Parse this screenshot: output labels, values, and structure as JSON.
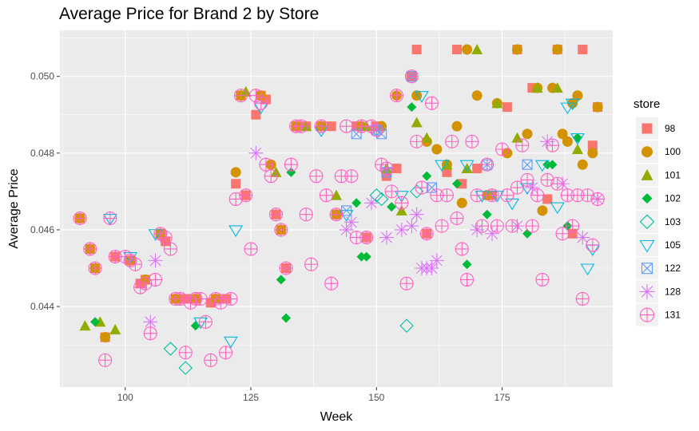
{
  "chart_data": {
    "type": "scatter",
    "title": "Average Price for Brand 2 by Store",
    "xlabel": "Week",
    "ylabel": "Average Price",
    "xlim": [
      87,
      197
    ],
    "ylim": [
      0.0419,
      0.0512
    ],
    "x_ticks": [
      100,
      125,
      150,
      175
    ],
    "y_ticks": [
      0.044,
      0.046,
      0.048,
      0.05
    ],
    "x_tick_labels": [
      "100",
      "125",
      "150",
      "175"
    ],
    "y_tick_labels": [
      "0.044",
      "0.046",
      "0.048",
      "0.050"
    ],
    "grid": true,
    "legend_title": "store",
    "legend_position": "right",
    "series": [
      {
        "name": "98",
        "shape": "square",
        "color": "#F8766D",
        "points": [
          [
            91,
            0.0463
          ],
          [
            93,
            0.0455
          ],
          [
            94,
            0.045
          ],
          [
            96,
            0.0432
          ],
          [
            98,
            0.0453
          ],
          [
            101,
            0.0452
          ],
          [
            103,
            0.0446
          ],
          [
            104,
            0.0447
          ],
          [
            107,
            0.0459
          ],
          [
            108,
            0.0457
          ],
          [
            110,
            0.0442
          ],
          [
            112,
            0.0442
          ],
          [
            114,
            0.0442
          ],
          [
            117,
            0.0441
          ],
          [
            118,
            0.0442
          ],
          [
            120,
            0.0442
          ],
          [
            122,
            0.0472
          ],
          [
            123,
            0.0495
          ],
          [
            124,
            0.0469
          ],
          [
            126,
            0.049
          ],
          [
            127,
            0.0495
          ],
          [
            128,
            0.0494
          ],
          [
            130,
            0.0464
          ],
          [
            131,
            0.046
          ],
          [
            132,
            0.045
          ],
          [
            134,
            0.0487
          ],
          [
            136,
            0.0487
          ],
          [
            139,
            0.0487
          ],
          [
            141,
            0.0487
          ],
          [
            142,
            0.0464
          ],
          [
            146,
            0.0487
          ],
          [
            148,
            0.0458
          ],
          [
            150,
            0.0487
          ],
          [
            152,
            0.0474
          ],
          [
            154,
            0.0476
          ],
          [
            157,
            0.05
          ],
          [
            158,
            0.0507
          ],
          [
            160,
            0.0459
          ],
          [
            164,
            0.0475
          ],
          [
            166,
            0.0507
          ],
          [
            167,
            0.0472
          ],
          [
            170,
            0.0476
          ],
          [
            173,
            0.0469
          ],
          [
            176,
            0.0492
          ],
          [
            178,
            0.0507
          ],
          [
            181,
            0.0497
          ],
          [
            184,
            0.0468
          ],
          [
            186,
            0.0507
          ],
          [
            189,
            0.0459
          ],
          [
            191,
            0.0507
          ],
          [
            193,
            0.0482
          ],
          [
            194,
            0.0492
          ]
        ]
      },
      {
        "name": "100",
        "shape": "circle",
        "color": "#D39200",
        "points": [
          [
            91,
            0.0463
          ],
          [
            93,
            0.0455
          ],
          [
            94,
            0.045
          ],
          [
            96,
            0.0432
          ],
          [
            101,
            0.0452
          ],
          [
            104,
            0.0447
          ],
          [
            107,
            0.0459
          ],
          [
            110,
            0.0442
          ],
          [
            114,
            0.0442
          ],
          [
            118,
            0.0442
          ],
          [
            122,
            0.0475
          ],
          [
            123,
            0.0495
          ],
          [
            127,
            0.0495
          ],
          [
            129,
            0.0477
          ],
          [
            131,
            0.046
          ],
          [
            134,
            0.0487
          ],
          [
            139,
            0.0487
          ],
          [
            142,
            0.0464
          ],
          [
            147,
            0.0487
          ],
          [
            151,
            0.0487
          ],
          [
            154,
            0.0495
          ],
          [
            158,
            0.0495
          ],
          [
            160,
            0.0483
          ],
          [
            162,
            0.0481
          ],
          [
            164,
            0.0477
          ],
          [
            166,
            0.0487
          ],
          [
            167,
            0.0467
          ],
          [
            168,
            0.0507
          ],
          [
            170,
            0.0495
          ],
          [
            172,
            0.0469
          ],
          [
            174,
            0.0493
          ],
          [
            176,
            0.048
          ],
          [
            178,
            0.0507
          ],
          [
            180,
            0.0485
          ],
          [
            182,
            0.0497
          ],
          [
            183,
            0.0465
          ],
          [
            185,
            0.0497
          ],
          [
            186,
            0.0507
          ],
          [
            187,
            0.0485
          ],
          [
            188,
            0.0483
          ],
          [
            189,
            0.0493
          ],
          [
            190,
            0.0495
          ],
          [
            191,
            0.0477
          ],
          [
            193,
            0.048
          ],
          [
            194,
            0.0492
          ]
        ]
      },
      {
        "name": "101",
        "shape": "triangle",
        "color": "#93AA00",
        "points": [
          [
            92,
            0.0435
          ],
          [
            95,
            0.0436
          ],
          [
            98,
            0.0434
          ],
          [
            124,
            0.0496
          ],
          [
            130,
            0.0475
          ],
          [
            136,
            0.0487
          ],
          [
            142,
            0.0469
          ],
          [
            148,
            0.0487
          ],
          [
            152,
            0.0476
          ],
          [
            155,
            0.0465
          ],
          [
            158,
            0.0488
          ],
          [
            160,
            0.0484
          ],
          [
            164,
            0.0477
          ],
          [
            168,
            0.0476
          ],
          [
            170,
            0.0507
          ],
          [
            174,
            0.0493
          ],
          [
            178,
            0.0484
          ],
          [
            182,
            0.0497
          ],
          [
            186,
            0.0497
          ],
          [
            190,
            0.0481
          ]
        ]
      },
      {
        "name": "102",
        "shape": "diamond",
        "color": "#00BA38",
        "points": [
          [
            94,
            0.0436
          ],
          [
            114,
            0.0435
          ],
          [
            131,
            0.0447
          ],
          [
            132,
            0.0437
          ],
          [
            133,
            0.0475
          ],
          [
            146,
            0.0467
          ],
          [
            147,
            0.0453
          ],
          [
            148,
            0.0453
          ],
          [
            153,
            0.0466
          ],
          [
            157,
            0.0492
          ],
          [
            160,
            0.0474
          ],
          [
            166,
            0.0472
          ],
          [
            168,
            0.0451
          ],
          [
            172,
            0.0464
          ],
          [
            180,
            0.0459
          ],
          [
            184,
            0.0477
          ],
          [
            185,
            0.0477
          ],
          [
            188,
            0.0461
          ],
          [
            190,
            0.0484
          ]
        ]
      },
      {
        "name": "103",
        "shape": "diamond-open",
        "color": "#00C19F",
        "points": [
          [
            109,
            0.0429
          ],
          [
            112,
            0.0424
          ],
          [
            150,
            0.0469
          ],
          [
            151,
            0.0468
          ],
          [
            156,
            0.0435
          ],
          [
            158,
            0.047
          ]
        ]
      },
      {
        "name": "105",
        "shape": "triangle-down-open",
        "color": "#00B9E3",
        "points": [
          [
            97,
            0.0463
          ],
          [
            101,
            0.0453
          ],
          [
            106,
            0.0459
          ],
          [
            115,
            0.0436
          ],
          [
            121,
            0.0431
          ],
          [
            122,
            0.046
          ],
          [
            127,
            0.0492
          ],
          [
            139,
            0.0486
          ],
          [
            144,
            0.0464
          ],
          [
            150,
            0.0486
          ],
          [
            155,
            0.0469
          ],
          [
            159,
            0.0495
          ],
          [
            163,
            0.0477
          ],
          [
            168,
            0.0477
          ],
          [
            171,
            0.0469
          ],
          [
            174,
            0.0469
          ],
          [
            177,
            0.0467
          ],
          [
            180,
            0.0471
          ],
          [
            183,
            0.0477
          ],
          [
            186,
            0.0466
          ],
          [
            188,
            0.0492
          ],
          [
            189,
            0.0493
          ],
          [
            190,
            0.0484
          ],
          [
            192,
            0.045
          ],
          [
            193,
            0.0455
          ]
        ]
      },
      {
        "name": "122",
        "shape": "square-x",
        "color": "#619CFF",
        "points": [
          [
            144,
            0.0465
          ],
          [
            146,
            0.0485
          ],
          [
            150,
            0.0486
          ],
          [
            151,
            0.0485
          ],
          [
            152,
            0.0475
          ],
          [
            157,
            0.05
          ],
          [
            161,
            0.0471
          ],
          [
            172,
            0.0477
          ],
          [
            180,
            0.0477
          ]
        ]
      },
      {
        "name": "128",
        "shape": "asterisk",
        "color": "#DB72FB",
        "points": [
          [
            105,
            0.0436
          ],
          [
            106,
            0.0452
          ],
          [
            126,
            0.048
          ],
          [
            144,
            0.046
          ],
          [
            145,
            0.0462
          ],
          [
            149,
            0.0467
          ],
          [
            152,
            0.0458
          ],
          [
            155,
            0.046
          ],
          [
            157,
            0.0461
          ],
          [
            158,
            0.0464
          ],
          [
            159,
            0.045
          ],
          [
            160,
            0.045
          ],
          [
            161,
            0.045
          ],
          [
            162,
            0.0452
          ],
          [
            170,
            0.046
          ],
          [
            173,
            0.0459
          ],
          [
            178,
            0.0461
          ],
          [
            181,
            0.0471
          ],
          [
            184,
            0.0483
          ],
          [
            187,
            0.0472
          ],
          [
            191,
            0.0458
          ],
          [
            194,
            0.0468
          ]
        ]
      },
      {
        "name": "131",
        "shape": "circle-plus",
        "color": "#FF61C3",
        "points": [
          [
            91,
            0.0463
          ],
          [
            93,
            0.0455
          ],
          [
            94,
            0.045
          ],
          [
            96,
            0.0426
          ],
          [
            97,
            0.0463
          ],
          [
            98,
            0.0453
          ],
          [
            100,
            0.0453
          ],
          [
            101,
            0.0452
          ],
          [
            102,
            0.0451
          ],
          [
            103,
            0.0445
          ],
          [
            104,
            0.0446
          ],
          [
            105,
            0.0433
          ],
          [
            106,
            0.0447
          ],
          [
            107,
            0.0459
          ],
          [
            108,
            0.0458
          ],
          [
            109,
            0.0455
          ],
          [
            110,
            0.0442
          ],
          [
            111,
            0.0442
          ],
          [
            112,
            0.0428
          ],
          [
            113,
            0.0441
          ],
          [
            114,
            0.0442
          ],
          [
            115,
            0.0442
          ],
          [
            116,
            0.0436
          ],
          [
            117,
            0.0426
          ],
          [
            118,
            0.0442
          ],
          [
            119,
            0.0441
          ],
          [
            120,
            0.0428
          ],
          [
            121,
            0.0442
          ],
          [
            122,
            0.0468
          ],
          [
            123,
            0.0495
          ],
          [
            124,
            0.0469
          ],
          [
            125,
            0.0455
          ],
          [
            126,
            0.0495
          ],
          [
            127,
            0.0493
          ],
          [
            128,
            0.0477
          ],
          [
            129,
            0.0474
          ],
          [
            130,
            0.0464
          ],
          [
            131,
            0.046
          ],
          [
            132,
            0.045
          ],
          [
            133,
            0.0477
          ],
          [
            134,
            0.0487
          ],
          [
            135,
            0.0487
          ],
          [
            136,
            0.0464
          ],
          [
            137,
            0.0451
          ],
          [
            138,
            0.0474
          ],
          [
            139,
            0.0487
          ],
          [
            140,
            0.0469
          ],
          [
            141,
            0.0446
          ],
          [
            142,
            0.0464
          ],
          [
            143,
            0.0474
          ],
          [
            144,
            0.0487
          ],
          [
            145,
            0.0474
          ],
          [
            146,
            0.0458
          ],
          [
            147,
            0.0487
          ],
          [
            148,
            0.0458
          ],
          [
            149,
            0.0487
          ],
          [
            150,
            0.0486
          ],
          [
            151,
            0.0477
          ],
          [
            152,
            0.0476
          ],
          [
            153,
            0.047
          ],
          [
            154,
            0.0495
          ],
          [
            155,
            0.0467
          ],
          [
            156,
            0.0446
          ],
          [
            157,
            0.05
          ],
          [
            158,
            0.0483
          ],
          [
            159,
            0.0471
          ],
          [
            160,
            0.0459
          ],
          [
            161,
            0.0493
          ],
          [
            162,
            0.0469
          ],
          [
            163,
            0.0461
          ],
          [
            164,
            0.0469
          ],
          [
            165,
            0.0483
          ],
          [
            166,
            0.0463
          ],
          [
            167,
            0.0455
          ],
          [
            168,
            0.0447
          ],
          [
            169,
            0.0483
          ],
          [
            170,
            0.0469
          ],
          [
            171,
            0.0461
          ],
          [
            172,
            0.0477
          ],
          [
            173,
            0.0469
          ],
          [
            174,
            0.0461
          ],
          [
            175,
            0.0481
          ],
          [
            176,
            0.0469
          ],
          [
            177,
            0.0461
          ],
          [
            178,
            0.0471
          ],
          [
            179,
            0.0482
          ],
          [
            180,
            0.0473
          ],
          [
            181,
            0.0461
          ],
          [
            182,
            0.0469
          ],
          [
            183,
            0.0447
          ],
          [
            184,
            0.0473
          ],
          [
            185,
            0.0482
          ],
          [
            186,
            0.0472
          ],
          [
            187,
            0.0459
          ],
          [
            188,
            0.0469
          ],
          [
            189,
            0.0461
          ],
          [
            190,
            0.0469
          ],
          [
            191,
            0.0442
          ],
          [
            192,
            0.0469
          ],
          [
            193,
            0.0456
          ],
          [
            194,
            0.0468
          ]
        ]
      }
    ]
  }
}
